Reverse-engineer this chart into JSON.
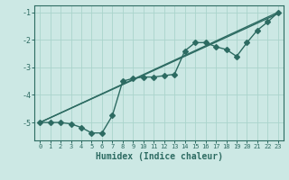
{
  "xlabel": "Humidex (Indice chaleur)",
  "bg_color": "#cce8e4",
  "grid_color": "#aad4cc",
  "line_color": "#2d6b62",
  "xlim": [
    -0.5,
    23.5
  ],
  "ylim": [
    -5.65,
    -0.75
  ],
  "yticks": [
    -5,
    -4,
    -3,
    -2,
    -1
  ],
  "xticks": [
    0,
    1,
    2,
    3,
    4,
    5,
    6,
    7,
    8,
    9,
    10,
    11,
    12,
    13,
    14,
    15,
    16,
    17,
    18,
    19,
    20,
    21,
    22,
    23
  ],
  "line1_x": [
    0,
    1,
    2,
    3,
    4,
    5,
    6,
    7,
    8,
    9,
    10,
    11,
    12,
    13,
    14,
    15,
    16,
    17,
    18,
    19,
    20,
    21,
    22,
    23
  ],
  "line1_y": [
    -5.0,
    -5.0,
    -5.0,
    -5.05,
    -5.18,
    -5.38,
    -5.38,
    -4.75,
    -3.5,
    -3.4,
    -3.35,
    -3.35,
    -3.3,
    -3.25,
    -2.4,
    -2.1,
    -2.1,
    -2.25,
    -2.35,
    -2.6,
    -2.1,
    -1.65,
    -1.35,
    -1.0
  ],
  "line2_x": [
    0,
    23
  ],
  "line2_y": [
    -5.0,
    -1.0
  ],
  "line3_x": [
    0,
    23
  ],
  "line3_y": [
    -5.0,
    -1.05
  ]
}
